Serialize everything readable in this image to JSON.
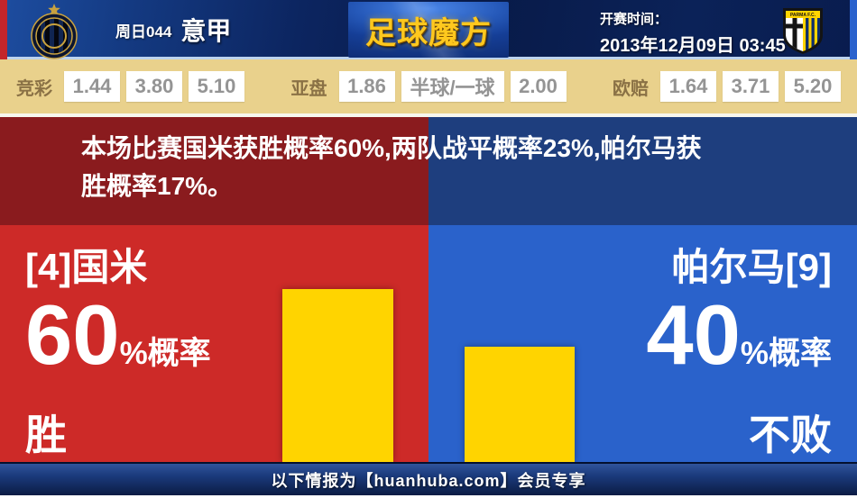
{
  "header": {
    "league_tag": "周日044",
    "league": "意甲",
    "brand": "足球魔方",
    "kickoff_label": "开赛时间：",
    "kickoff_time": "2013年12月09日 03:45",
    "away_crest_text": "PARMA F.C."
  },
  "odds": {
    "jingcai": {
      "label": "竞彩",
      "values": [
        "1.44",
        "3.80",
        "5.10"
      ]
    },
    "yapan": {
      "label": "亚盘",
      "values": [
        "1.86",
        "半球/一球",
        "2.00"
      ]
    },
    "oupei": {
      "label": "欧赔",
      "values": [
        "1.64",
        "3.71",
        "5.20"
      ]
    }
  },
  "analysis": {
    "summary": "本场比赛国米获胜概率60%,两队战平概率23%,帕尔马获胜概率17%。"
  },
  "home": {
    "name_line": "[4]国米",
    "pct": "60",
    "pct_suffix": "%概率",
    "outcome": "胜",
    "bar_pct": 60
  },
  "away": {
    "name_line": "帕尔马[9]",
    "pct": "40",
    "pct_suffix": "%概率",
    "outcome": "不败",
    "bar_pct": 40
  },
  "footer": {
    "notice": "以下情报为【huanhuba.com】会员专享"
  },
  "colors": {
    "home_red_bright": "#cd2a28",
    "home_red_dark": "#8a1b1e",
    "away_blue_bright": "#2a62cb",
    "away_blue_dark": "#1e3e7e",
    "bar_yellow": "#ffd400",
    "odds_bg": "#e9d18c",
    "brand_gold": "#ffc81e",
    "header_navy": "#0b2258"
  },
  "chart": {
    "type": "bar",
    "categories": [
      "国米 胜",
      "帕尔马 不败"
    ],
    "values": [
      60,
      40
    ],
    "ylim": [
      0,
      100
    ]
  }
}
